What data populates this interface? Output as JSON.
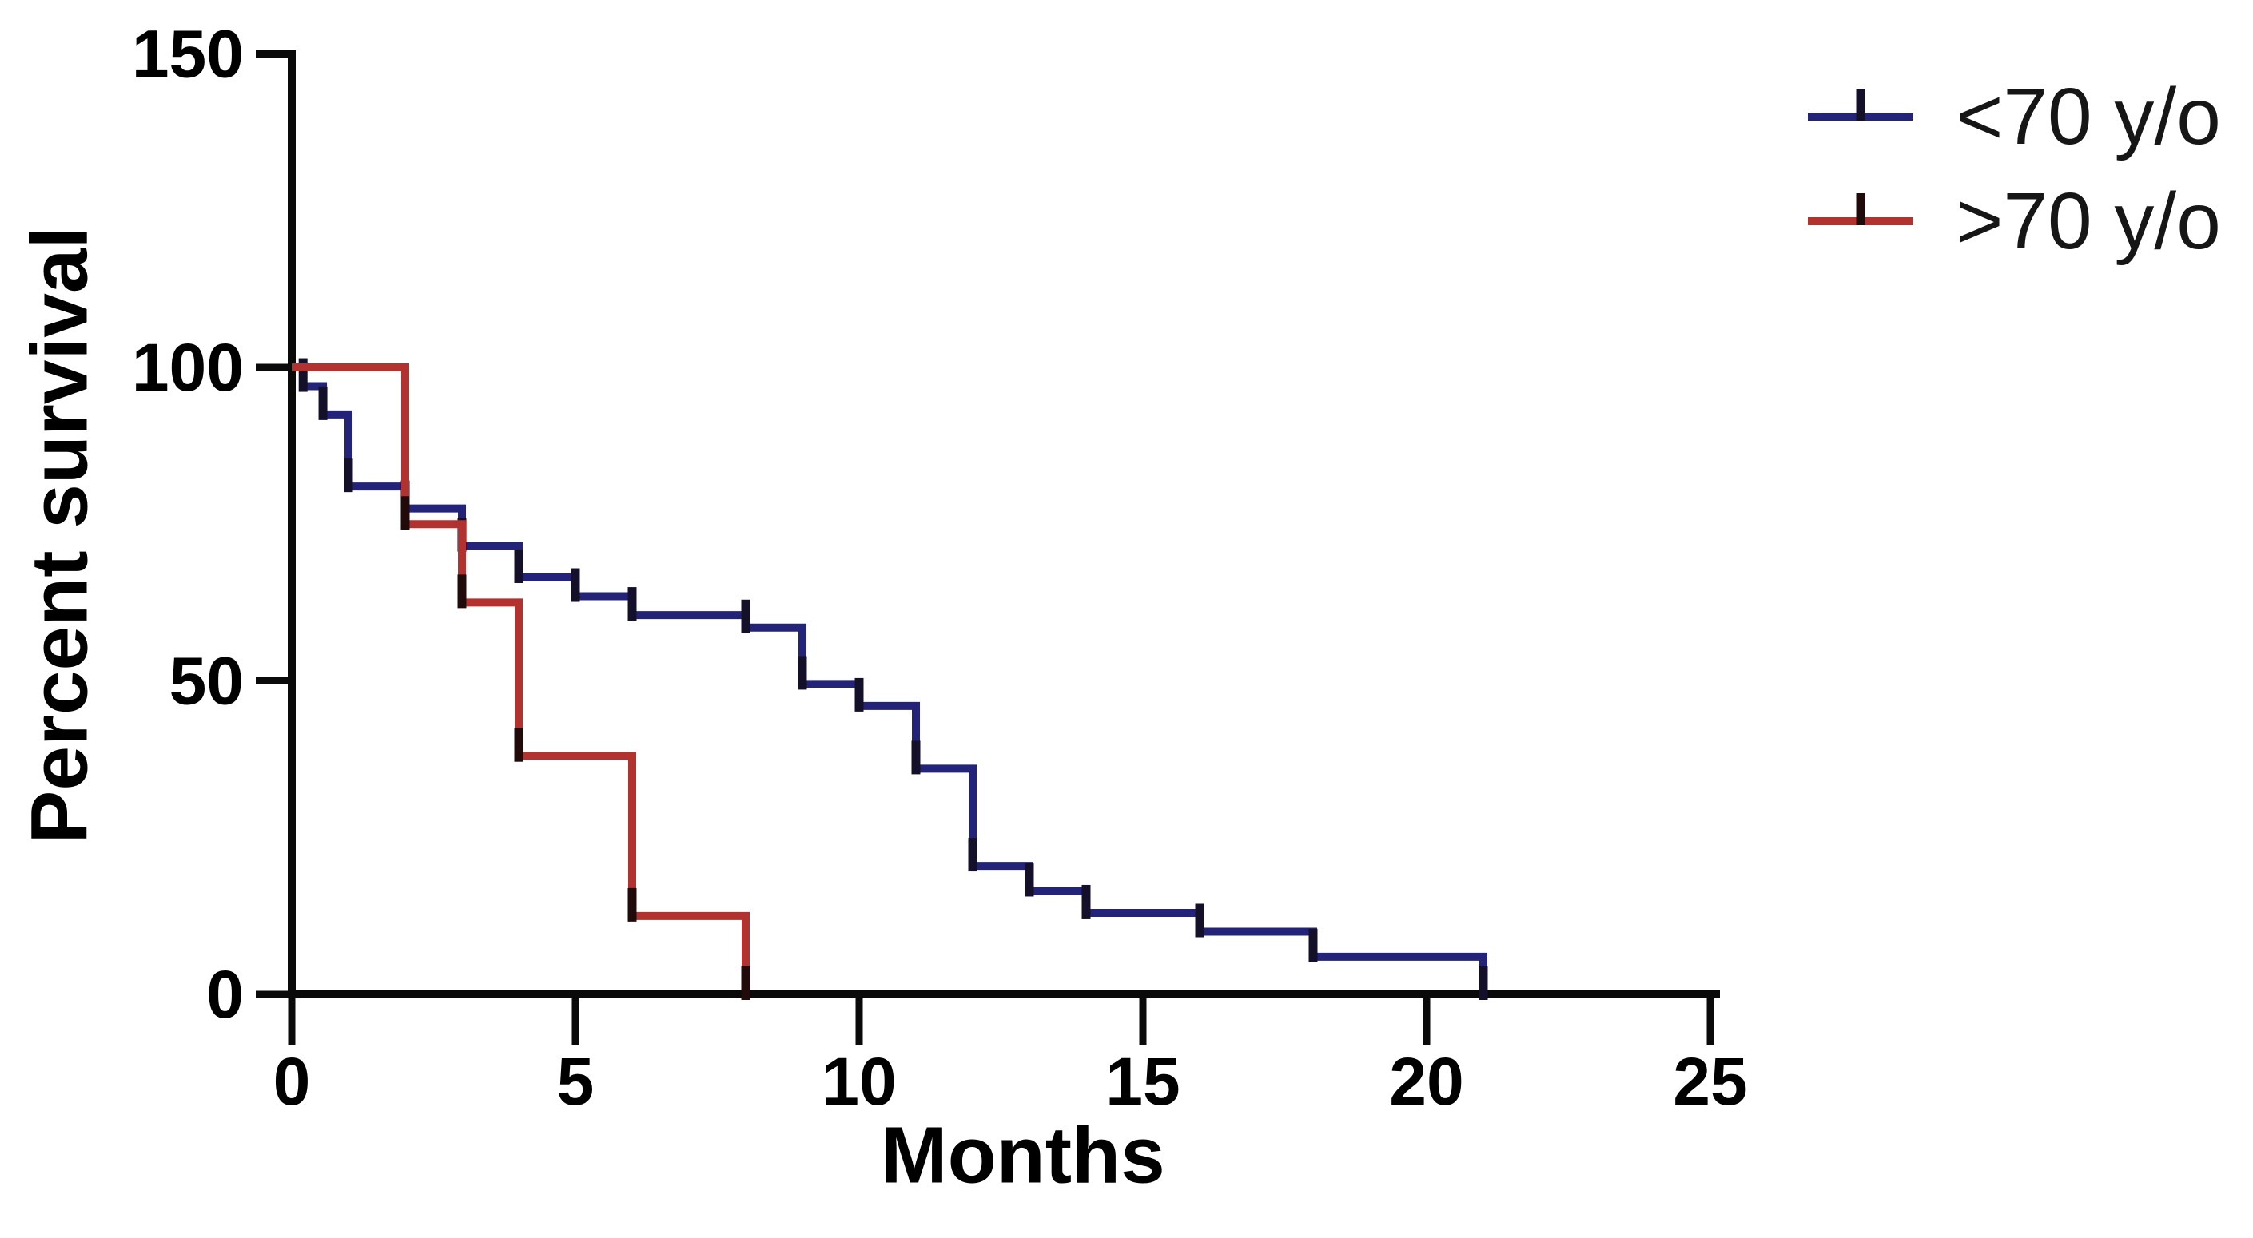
{
  "figure": {
    "y_axis_title": "Percent survival",
    "x_axis_title": "Months",
    "background_color": "#ffffff",
    "axis_color": "#0a0a0a",
    "legend": {
      "items": [
        {
          "label": "<70 y/o",
          "color": "#23237a",
          "marker_color": "#14102a"
        },
        {
          "label": ">70 y/o",
          "color": "#b23230",
          "marker_color": "#200b0a"
        }
      ]
    }
  },
  "chart_data": {
    "type": "line",
    "subtype": "kaplan-meier-step-survival",
    "title": "",
    "xlabel": "Months",
    "ylabel": "Percent survival",
    "xlim": [
      0,
      25
    ],
    "ylim": [
      0,
      150
    ],
    "x_ticks": [
      0,
      5,
      10,
      15,
      20,
      25
    ],
    "y_ticks": [
      0,
      50,
      100,
      150
    ],
    "grid": false,
    "legend_position": "top-right",
    "series": [
      {
        "name": "<70 y/o",
        "color": "#23237a",
        "marker_color": "#14102a",
        "steps": [
          [
            0,
            100
          ],
          [
            0.2,
            97
          ],
          [
            0.55,
            92.5
          ],
          [
            1,
            81
          ],
          [
            2,
            77.5
          ],
          [
            3,
            71.5
          ],
          [
            4,
            66.5
          ],
          [
            5,
            63.5
          ],
          [
            6,
            60.5
          ],
          [
            8,
            58.5
          ],
          [
            9,
            49.5
          ],
          [
            10,
            46
          ],
          [
            11,
            36
          ],
          [
            12,
            20.5
          ],
          [
            13,
            16.5
          ],
          [
            14,
            13
          ],
          [
            16,
            10
          ],
          [
            18,
            6
          ],
          [
            21,
            0
          ]
        ],
        "censor_marks": []
      },
      {
        "name": ">70 y/o",
        "color": "#b23230",
        "marker_color": "#200b0a",
        "steps": [
          [
            0,
            100
          ],
          [
            2,
            75
          ],
          [
            3,
            62.5
          ],
          [
            4,
            38
          ],
          [
            6,
            12.5
          ],
          [
            8,
            0
          ]
        ],
        "censor_marks": []
      }
    ]
  }
}
